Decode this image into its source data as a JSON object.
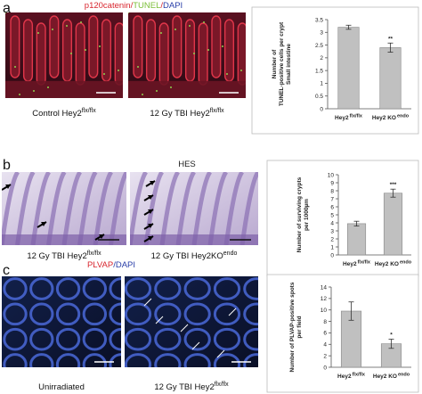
{
  "panels": [
    {
      "letter": "a",
      "title_parts": [
        {
          "text": "p120catenin",
          "color": "#d8262f"
        },
        {
          "text": "/",
          "color": "#d8262f"
        },
        {
          "text": "TUNEL",
          "color": "#7cbf3a"
        },
        {
          "text": "/",
          "color": "#d8262f"
        },
        {
          "text": "DAPI",
          "color": "#2a3fa8"
        }
      ],
      "images": [
        {
          "label": "Control Hey2",
          "sup": "flx/flx"
        },
        {
          "label": "12 Gy TBI Hey2",
          "sup": "flx/flx"
        }
      ]
    },
    {
      "letter": "b",
      "title_parts": [
        {
          "text": "HES",
          "color": "#222222"
        }
      ],
      "images": [
        {
          "label": "12 Gy TBI Hey2",
          "sup": "flx/flx"
        },
        {
          "label": "12 Gy TBI Hey2KO",
          "sup": "endo"
        }
      ]
    },
    {
      "letter": "c",
      "title_parts": [
        {
          "text": "PLVAP",
          "color": "#d8262f"
        },
        {
          "text": "/",
          "color": "#2a3fa8"
        },
        {
          "text": "DAPI",
          "color": "#2a3fa8"
        }
      ],
      "images": [
        {
          "label": "Unirradiated",
          "sup": ""
        },
        {
          "label": "12 Gy TBI Hey2",
          "sup": "flx/flx"
        }
      ]
    }
  ],
  "chart_data": [
    {
      "type": "bar",
      "y_label": [
        "Number of",
        "TUNEL-positive cells per crypt",
        "Small intestine"
      ],
      "categories": [
        "Hey2",
        "Hey2 KO"
      ],
      "category_sups": [
        "flx/flx",
        "endo"
      ],
      "values": [
        3.2,
        2.4
      ],
      "errors": [
        0.08,
        0.18
      ],
      "significance": "**",
      "color": "#c0c0c0",
      "grid": false,
      "ylim": [
        0,
        3.5
      ],
      "yticks": [
        0,
        0.5,
        1,
        1.5,
        2,
        2.5,
        3,
        3.5
      ]
    },
    {
      "type": "bar",
      "y_label": [
        "Number of surviving crypts",
        "per 1000µm"
      ],
      "categories": [
        "Hey2",
        "Hey2 KO"
      ],
      "category_sups": [
        "flx/flx",
        "endo"
      ],
      "values": [
        3.9,
        7.7
      ],
      "errors": [
        0.3,
        0.5
      ],
      "significance": "***",
      "color": "#c0c0c0",
      "grid": false,
      "ylim": [
        0,
        10
      ],
      "yticks": [
        0,
        1,
        2,
        3,
        4,
        5,
        6,
        7,
        8,
        9,
        10
      ]
    },
    {
      "type": "bar",
      "y_label": [
        "Number of PLVAP-positive spots",
        "per field"
      ],
      "categories": [
        "Hey2",
        "Hey2 KO"
      ],
      "category_sups": [
        "flx/flx",
        "endo"
      ],
      "values": [
        9.8,
        4.1
      ],
      "errors": [
        1.6,
        0.8
      ],
      "significance": "*",
      "color": "#c0c0c0",
      "grid": false,
      "ylim": [
        0,
        14
      ],
      "yticks": [
        0,
        2,
        4,
        6,
        8,
        10,
        12,
        14
      ]
    }
  ]
}
